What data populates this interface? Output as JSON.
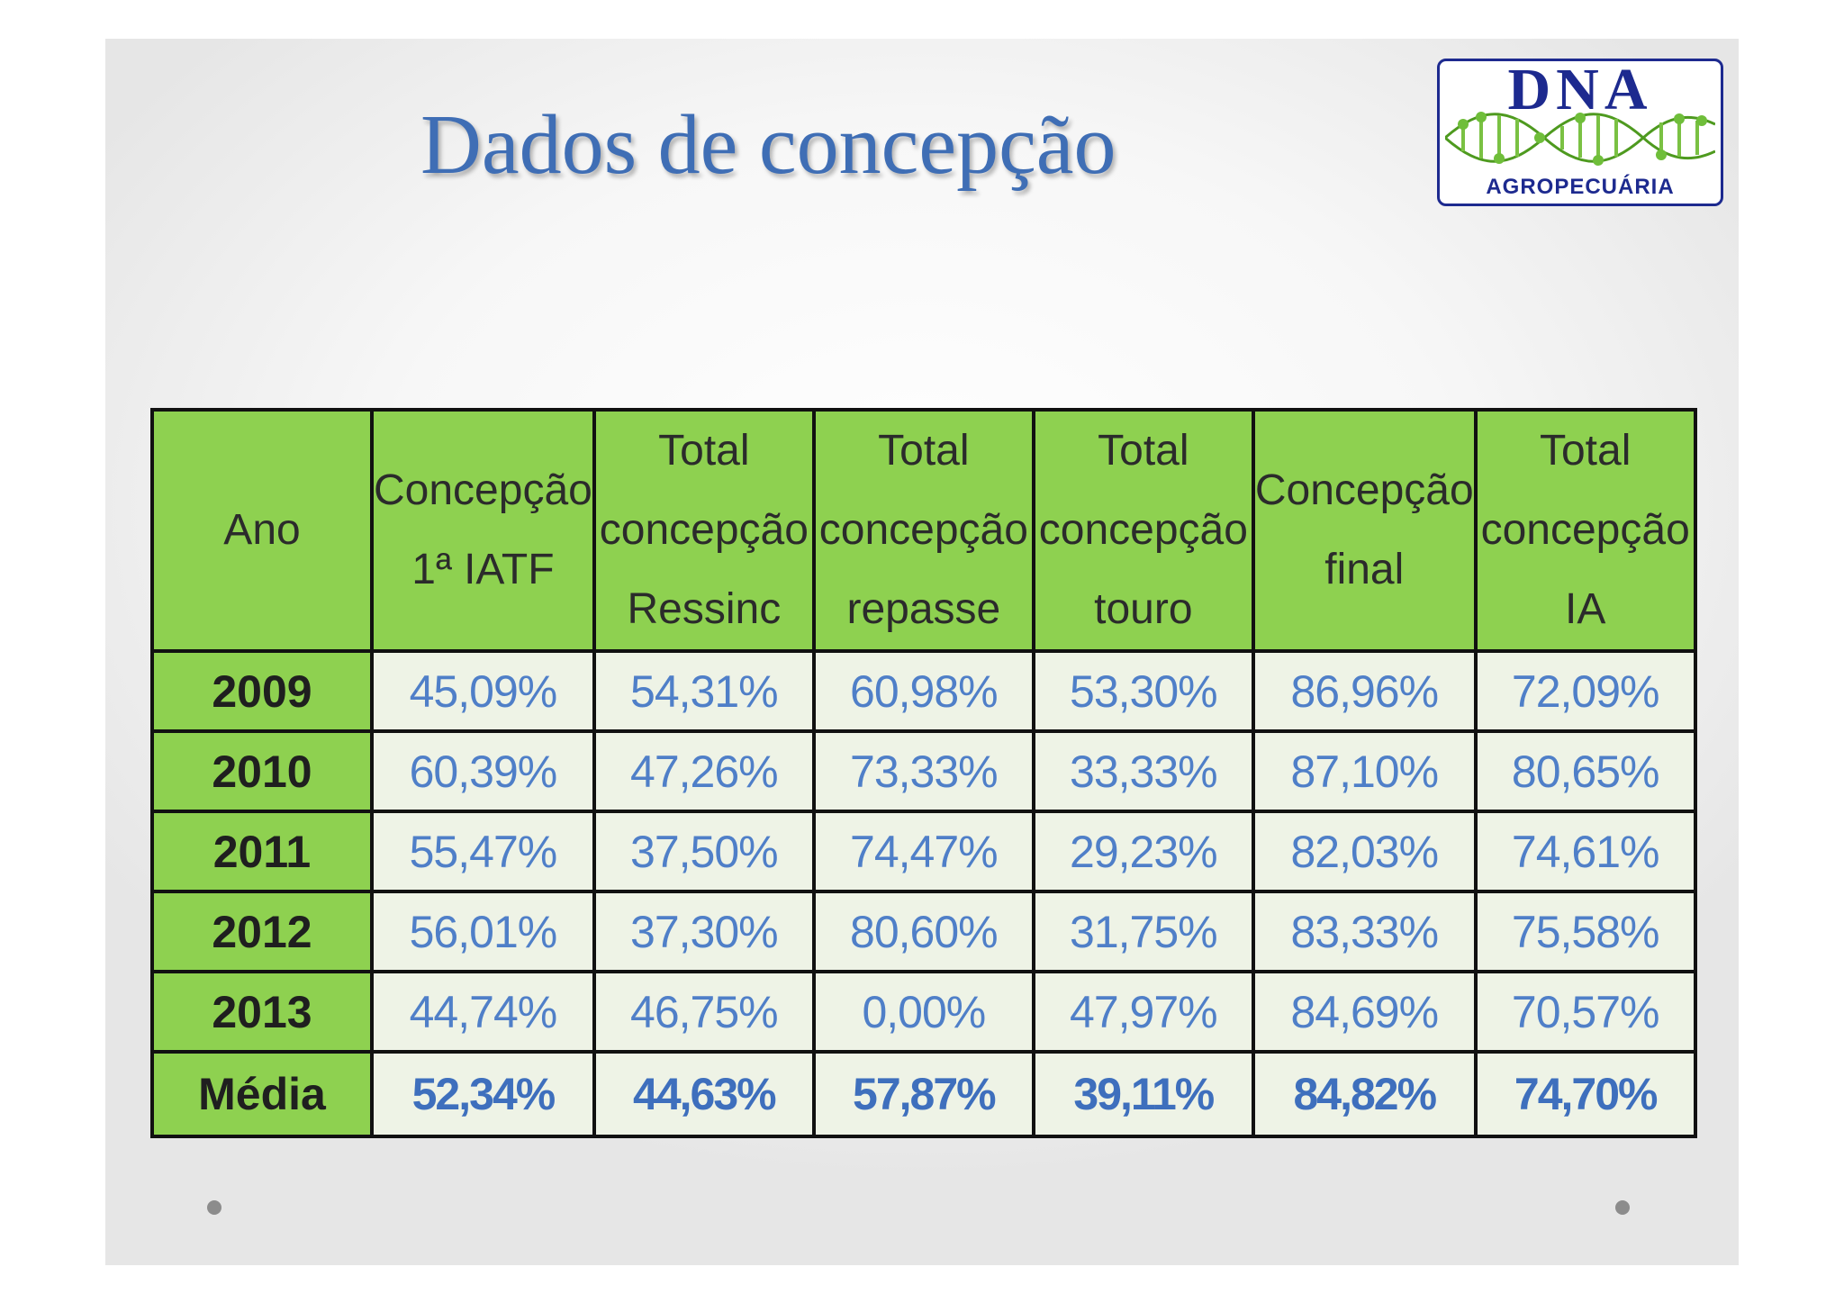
{
  "title": "Dados de concepção",
  "logo": {
    "name": "DNA",
    "subtitle": "AGROPECUÁRIA",
    "colors": {
      "text": "#1d2a8f",
      "helix": "#7ac143"
    }
  },
  "table": {
    "headers": [
      [
        "Ano"
      ],
      [
        "Concepção",
        "1ª IATF"
      ],
      [
        "Total",
        "concepção",
        "Ressinc"
      ],
      [
        "Total",
        "concepção",
        "repasse"
      ],
      [
        "Total",
        "concepção",
        "touro"
      ],
      [
        "Concepção",
        "final"
      ],
      [
        "Total",
        "concepção",
        "IA"
      ]
    ],
    "rows": [
      {
        "year": "2009",
        "values": [
          "45,09%",
          "54,31%",
          "60,98%",
          "53,30%",
          "86,96%",
          "72,09%"
        ]
      },
      {
        "year": "2010",
        "values": [
          "60,39%",
          "47,26%",
          "73,33%",
          "33,33%",
          "87,10%",
          "80,65%"
        ]
      },
      {
        "year": "2011",
        "values": [
          "55,47%",
          "37,50%",
          "74,47%",
          "29,23%",
          "82,03%",
          "74,61%"
        ]
      },
      {
        "year": "2012",
        "values": [
          "56,01%",
          "37,30%",
          "80,60%",
          "31,75%",
          "83,33%",
          "75,58%"
        ]
      },
      {
        "year": "2013",
        "values": [
          "44,74%",
          "46,75%",
          "0,00%",
          "47,97%",
          "84,69%",
          "70,57%"
        ]
      }
    ],
    "average": {
      "label": "Média",
      "values": [
        "52,34%",
        "44,63%",
        "57,87%",
        "39,11%",
        "84,82%",
        "74,70%"
      ]
    }
  },
  "colors": {
    "header_green": "#8ed150",
    "cell_bg": "#eef3e6",
    "value_blue": "#4f7fc8",
    "title_blue": "#3f6eb5"
  }
}
